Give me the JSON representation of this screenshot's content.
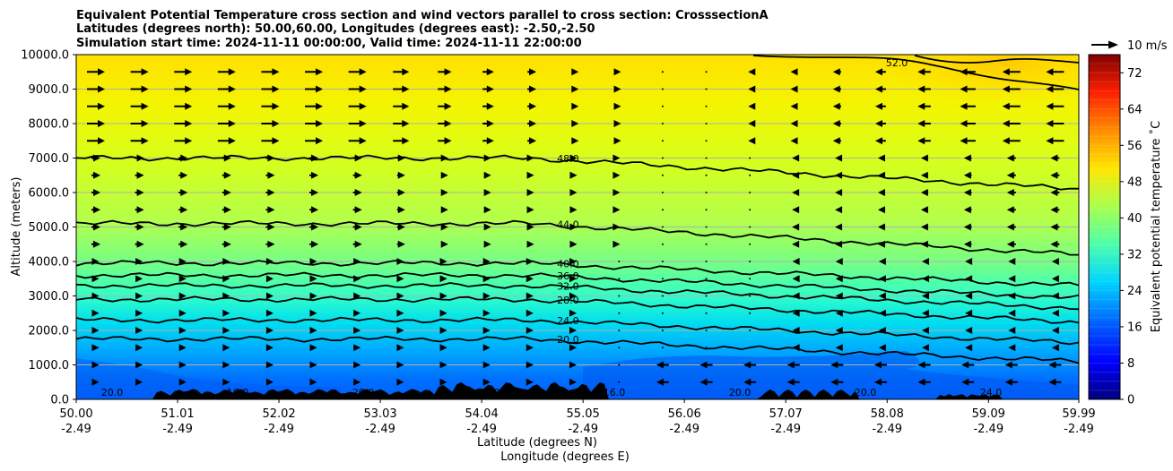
{
  "chart_data": {
    "type": "heatmap",
    "title_lines": [
      "Equivalent Potential Temperature cross section and wind vectors parallel to cross section: CrosssectionA",
      "Latitudes (degrees north): 50.00,60.00, Longitudes (degrees east): -2.50,-2.50",
      "Simulation start time: 2024-11-11 00:00:00, Valid time: 2024-11-11 22:00:00"
    ],
    "xlabel_1": "Latitude (degrees N)",
    "xlabel_2": "Longitude (degrees E)",
    "ylabel": "Altitude (meters)",
    "x_ticks": [
      {
        "lat": "50.00",
        "lon": "-2.49"
      },
      {
        "lat": "51.01",
        "lon": "-2.49"
      },
      {
        "lat": "52.02",
        "lon": "-2.49"
      },
      {
        "lat": "53.03",
        "lon": "-2.49"
      },
      {
        "lat": "54.04",
        "lon": "-2.49"
      },
      {
        "lat": "55.05",
        "lon": "-2.49"
      },
      {
        "lat": "56.06",
        "lon": "-2.49"
      },
      {
        "lat": "57.07",
        "lon": "-2.49"
      },
      {
        "lat": "58.08",
        "lon": "-2.49"
      },
      {
        "lat": "59.09",
        "lon": "-2.49"
      },
      {
        "lat": "59.99",
        "lon": "-2.49"
      }
    ],
    "y_ticks": [
      "0.0",
      "1000.0",
      "2000.0",
      "3000.0",
      "4000.0",
      "5000.0",
      "6000.0",
      "7000.0",
      "8000.0",
      "9000.0",
      "10000.0"
    ],
    "ylim": [
      0,
      10000
    ],
    "xlim": [
      50.0,
      59.99
    ],
    "grid": "horizontal",
    "colorbar": {
      "label": "Equivalent potential temperature ˚C",
      "ticks": [
        "0",
        "8",
        "16",
        "24",
        "32",
        "40",
        "48",
        "56",
        "64",
        "72"
      ],
      "range": [
        0,
        76
      ],
      "colormap": "jet"
    },
    "quiver_key": "10 m/s",
    "contour_levels": [
      {
        "value": 20.0,
        "label": "20.0",
        "base_alt": 1750
      },
      {
        "value": 24.0,
        "label": "24.0",
        "base_alt": 2300
      },
      {
        "value": 28.0,
        "label": "28.0",
        "base_alt": 2900
      },
      {
        "value": 32.0,
        "label": "32.0",
        "base_alt": 3300
      },
      {
        "value": 36.0,
        "label": "36.0",
        "base_alt": 3600
      },
      {
        "value": 40.0,
        "label": "40.0",
        "base_alt": 3950
      },
      {
        "value": 44.0,
        "label": "44.0",
        "base_alt": 5100
      },
      {
        "value": 48.0,
        "label": "48.0",
        "base_alt": 7000
      },
      {
        "value": 52.0,
        "label": "52.0",
        "base_alt": 10000
      }
    ],
    "surface_labels": [
      "20.0",
      "16.0",
      "20.0",
      "16.0",
      "16.0",
      "20.0",
      "20.0",
      "24.0"
    ]
  }
}
